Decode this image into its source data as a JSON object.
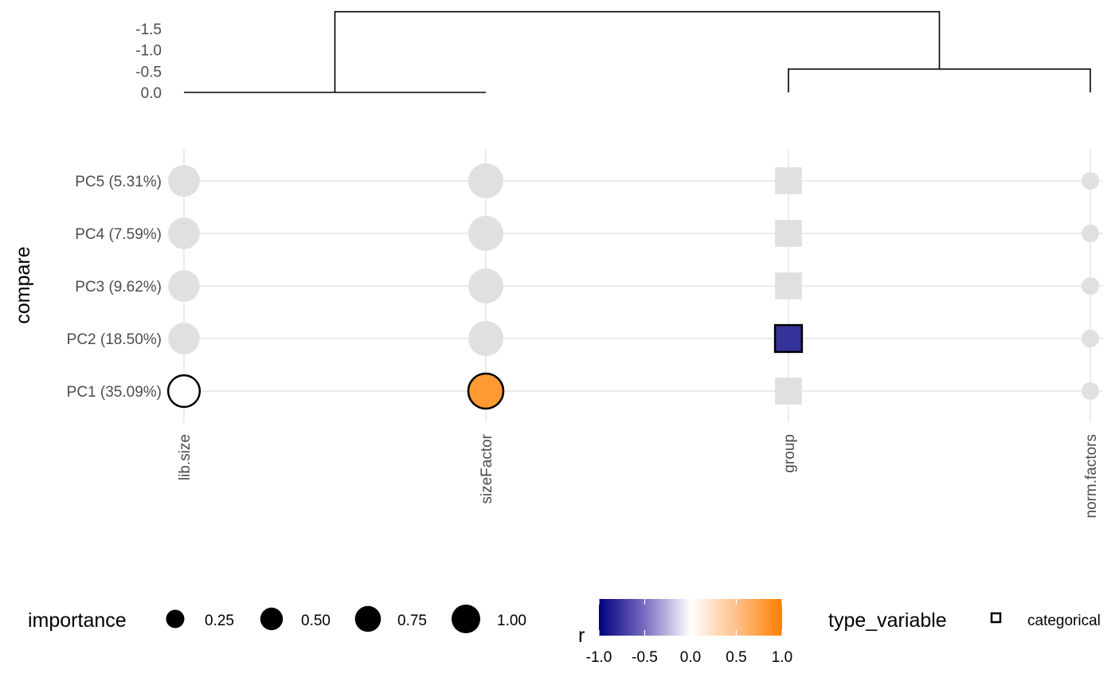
{
  "chart_data": {
    "type": "scatter",
    "x_categories": [
      "lib.size",
      "sizeFactor",
      "group",
      "norm.factors"
    ],
    "y_categories": [
      "PC1  (35.09%)",
      "PC2  (18.50%)",
      "PC3  (9.62%)",
      "PC4  (7.59%)",
      "PC5  (5.31%)"
    ],
    "ylabel": "compare",
    "variable_types": {
      "lib.size": "continuous",
      "sizeFactor": "continuous",
      "group": "categorical",
      "norm.factors": "continuous"
    },
    "points": [
      {
        "x": "lib.size",
        "y": "PC1  (35.09%)",
        "importance": 0.75,
        "r": 0.0,
        "significant": true
      },
      {
        "x": "lib.size",
        "y": "PC2  (18.50%)",
        "importance": 0.75,
        "r": null,
        "significant": false
      },
      {
        "x": "lib.size",
        "y": "PC3  (9.62%)",
        "importance": 0.75,
        "r": null,
        "significant": false
      },
      {
        "x": "lib.size",
        "y": "PC4  (7.59%)",
        "importance": 0.75,
        "r": null,
        "significant": false
      },
      {
        "x": "lib.size",
        "y": "PC5  (5.31%)",
        "importance": 0.75,
        "r": null,
        "significant": false
      },
      {
        "x": "sizeFactor",
        "y": "PC1  (35.09%)",
        "importance": 1.0,
        "r": 0.8,
        "significant": true
      },
      {
        "x": "sizeFactor",
        "y": "PC2  (18.50%)",
        "importance": 1.0,
        "r": null,
        "significant": false
      },
      {
        "x": "sizeFactor",
        "y": "PC3  (9.62%)",
        "importance": 1.0,
        "r": null,
        "significant": false
      },
      {
        "x": "sizeFactor",
        "y": "PC4  (7.59%)",
        "importance": 1.0,
        "r": null,
        "significant": false
      },
      {
        "x": "sizeFactor",
        "y": "PC5  (5.31%)",
        "importance": 1.0,
        "r": null,
        "significant": false
      },
      {
        "x": "group",
        "y": "PC1  (35.09%)",
        "importance": 0.75,
        "r": null,
        "significant": false
      },
      {
        "x": "group",
        "y": "PC2  (18.50%)",
        "importance": 0.75,
        "r": -0.8,
        "significant": true
      },
      {
        "x": "group",
        "y": "PC3  (9.62%)",
        "importance": 0.75,
        "r": null,
        "significant": false
      },
      {
        "x": "group",
        "y": "PC4  (7.59%)",
        "importance": 0.75,
        "r": null,
        "significant": false
      },
      {
        "x": "group",
        "y": "PC5  (5.31%)",
        "importance": 0.75,
        "r": null,
        "significant": false
      },
      {
        "x": "norm.factors",
        "y": "PC1  (35.09%)",
        "importance": 0.1,
        "r": null,
        "significant": false
      },
      {
        "x": "norm.factors",
        "y": "PC2  (18.50%)",
        "importance": 0.1,
        "r": null,
        "significant": false
      },
      {
        "x": "norm.factors",
        "y": "PC3  (9.62%)",
        "importance": 0.1,
        "r": null,
        "significant": false
      },
      {
        "x": "norm.factors",
        "y": "PC4  (7.59%)",
        "importance": 0.1,
        "r": null,
        "significant": false
      },
      {
        "x": "norm.factors",
        "y": "PC5  (5.31%)",
        "importance": 0.1,
        "r": null,
        "significant": false
      }
    ],
    "dendrogram": {
      "height_ticks": [
        -1.5,
        -1.0,
        -0.5,
        0.0
      ],
      "merges": [
        {
          "left": "lib.size",
          "right": "sizeFactor",
          "height": 0.0
        },
        {
          "left": "group",
          "right": "norm.factors",
          "height": -0.55
        },
        {
          "left": "cluster-1",
          "right": "cluster-2",
          "height": -1.9
        }
      ]
    },
    "legend": {
      "importance_title": "importance",
      "importance_values": [
        0.25,
        0.5,
        0.75,
        1.0
      ],
      "importance_labels": [
        "0.25",
        "0.50",
        "0.75",
        "1.00"
      ],
      "r_title": "r",
      "r_ticks": [
        -1.0,
        -0.5,
        0.0,
        0.5,
        1.0
      ],
      "r_tick_labels": [
        "-1.0",
        "-0.5",
        "0.0",
        "0.5",
        "1.0"
      ],
      "type_title": "type_variable",
      "type_labels": [
        "categorical"
      ],
      "placement": "bottom"
    },
    "colors": {
      "low": "#00007f",
      "mid": "#ffffff",
      "high": "#ff7f00",
      "non_significant": "#e0e0e0",
      "grid": "#ebebeb"
    }
  }
}
